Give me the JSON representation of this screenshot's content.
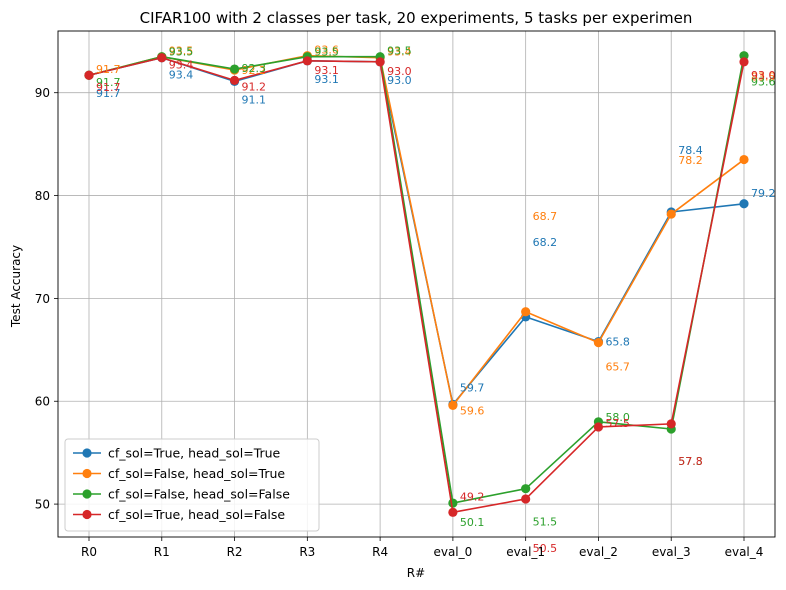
{
  "chart_data": {
    "type": "line",
    "title": "CIFAR100 with 2 classes per task, 20 experiments, 5 tasks per experimen",
    "xlabel": "R#",
    "ylabel": "Test Accuracy",
    "categories": [
      "R0",
      "R1",
      "R2",
      "R3",
      "R4",
      "eval_0",
      "eval_1",
      "eval_2",
      "eval_3",
      "eval_4"
    ],
    "ylim": [
      46.8,
      96.0
    ],
    "yticks": [
      50,
      60,
      70,
      80,
      90
    ],
    "grid": true,
    "legend_position": "lower-left",
    "series": [
      {
        "name": "cf_sol=True, head_sol=True",
        "color": "#1f77b4",
        "values": [
          91.7,
          93.4,
          91.1,
          93.1,
          93.0,
          59.7,
          68.2,
          65.8,
          78.4,
          79.2
        ],
        "labels": [
          "91.7",
          "93.4",
          "91.1",
          "93.1",
          "93.0",
          "59.7",
          "68.2",
          "65.8",
          "78.4",
          "79.2"
        ]
      },
      {
        "name": "cf_sol=False, head_sol=True",
        "color": "#ff7f0e",
        "values": [
          91.7,
          93.5,
          92.2,
          93.6,
          93.4,
          59.6,
          68.7,
          65.7,
          78.2,
          83.5
        ],
        "labels": [
          "91.7",
          "93.5",
          "92.2",
          "93.6",
          "93.4",
          "59.6",
          "68.7",
          "65.7",
          "78.2",
          "83.5"
        ]
      },
      {
        "name": "cf_sol=False, head_sol=False",
        "color": "#2ca02c",
        "values": [
          91.7,
          93.5,
          92.3,
          93.5,
          93.5,
          50.1,
          51.5,
          58.0,
          57.3,
          93.6
        ],
        "labels": [
          "91.7",
          "93.5",
          "92.3",
          "93.5",
          "93.5",
          "50.1",
          "51.5",
          "58.0",
          "57.3",
          "93.6"
        ]
      },
      {
        "name": "cf_sol=True, head_sol=False",
        "color": "#d62728",
        "values": [
          91.7,
          93.4,
          91.2,
          93.1,
          93.0,
          49.2,
          50.5,
          57.5,
          57.8,
          93.0
        ],
        "labels": [
          "91.7",
          "93.4",
          "91.2",
          "93.1",
          "93.0",
          "49.2",
          "50.5",
          "57.5",
          "57.8",
          "93.0"
        ]
      }
    ]
  }
}
